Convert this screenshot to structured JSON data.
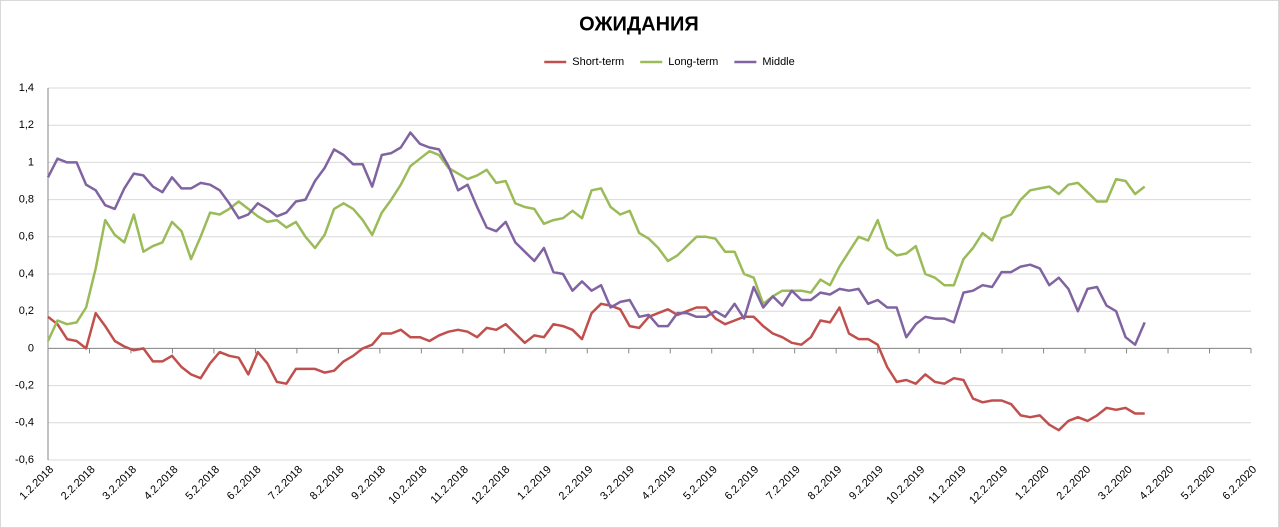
{
  "chart_data": {
    "type": "line",
    "title": "ОЖИДАНИЯ",
    "x": [
      0,
      1,
      2,
      3,
      4,
      5,
      6,
      7,
      8,
      9,
      10,
      11,
      12,
      13,
      14,
      15,
      16,
      17,
      18,
      19,
      20,
      21,
      22,
      23,
      24,
      25,
      26,
      27,
      28,
      29,
      30,
      31,
      32,
      33,
      34,
      35,
      36,
      37,
      38,
      39,
      40,
      41,
      42,
      43,
      44,
      45,
      46,
      47,
      48,
      49,
      50,
      51,
      52,
      53,
      54,
      55,
      56,
      57,
      58,
      59,
      60,
      61,
      62,
      63,
      64,
      65,
      66,
      67,
      68,
      69,
      70,
      71,
      72,
      73,
      74,
      75,
      76,
      77,
      78,
      79,
      80,
      81,
      82,
      83,
      84,
      85,
      86,
      87,
      88,
      89,
      90,
      91,
      92,
      93,
      94,
      95,
      96,
      97,
      98,
      99,
      100,
      101,
      102,
      103,
      104,
      105,
      106,
      107,
      108,
      109,
      110,
      111,
      112,
      113,
      114,
      115
    ],
    "xlim": [
      0,
      126.15
    ],
    "xticks": [
      {
        "value": 0,
        "label": "1.2.2018"
      },
      {
        "value": 4.35,
        "label": "2.2.2018"
      },
      {
        "value": 8.7,
        "label": "3.2.2018"
      },
      {
        "value": 13.05,
        "label": "4.2.2018"
      },
      {
        "value": 17.4,
        "label": "5.2.2018"
      },
      {
        "value": 21.75,
        "label": "6.2.2018"
      },
      {
        "value": 26.1,
        "label": "7.2.2018"
      },
      {
        "value": 30.45,
        "label": "8.2.2018"
      },
      {
        "value": 34.8,
        "label": "9.2.2018"
      },
      {
        "value": 39.15,
        "label": "10.2.2018"
      },
      {
        "value": 43.5,
        "label": "11.2.2018"
      },
      {
        "value": 47.85,
        "label": "12.2.2018"
      },
      {
        "value": 52.2,
        "label": "1.2.2019"
      },
      {
        "value": 56.55,
        "label": "2.2.2019"
      },
      {
        "value": 60.9,
        "label": "3.2.2019"
      },
      {
        "value": 65.25,
        "label": "4.2.2019"
      },
      {
        "value": 69.6,
        "label": "5.2.2019"
      },
      {
        "value": 73.95,
        "label": "6.2.2019"
      },
      {
        "value": 78.3,
        "label": "7.2.2019"
      },
      {
        "value": 82.65,
        "label": "8.2.2019"
      },
      {
        "value": 87,
        "label": "9.2.2019"
      },
      {
        "value": 91.35,
        "label": "10.2.2019"
      },
      {
        "value": 95.7,
        "label": "11.2.2019"
      },
      {
        "value": 100.05,
        "label": "12.2.2019"
      },
      {
        "value": 104.4,
        "label": "1.2.2020"
      },
      {
        "value": 108.75,
        "label": "2.2.2020"
      },
      {
        "value": 113.1,
        "label": "3.2.2020"
      },
      {
        "value": 117.45,
        "label": "4.2.2020"
      },
      {
        "value": 121.8,
        "label": "5.2.2020"
      },
      {
        "value": 126.15,
        "label": "6.2.2020"
      }
    ],
    "ylim": [
      -0.6,
      1.4
    ],
    "yticks": [
      {
        "value": -0.6,
        "label": "-0,6"
      },
      {
        "value": -0.4,
        "label": "-0,4"
      },
      {
        "value": -0.2,
        "label": "-0,2"
      },
      0,
      {
        "value": 0.2,
        "label": "0,2"
      },
      {
        "value": 0.4,
        "label": "0,4"
      },
      {
        "value": 0.6,
        "label": "0,6"
      },
      {
        "value": 0.8,
        "label": "0,8"
      },
      1,
      {
        "value": 1.2,
        "label": "1,2"
      },
      {
        "value": 1.4,
        "label": "1,4"
      }
    ],
    "grid": true,
    "legend": "top",
    "series": [
      {
        "name": "Short-term",
        "color": "#c0504d",
        "values": [
          0.17,
          0.13,
          0.05,
          0.04,
          0.0,
          0.19,
          0.12,
          0.04,
          0.01,
          -0.01,
          0.0,
          -0.07,
          -0.07,
          -0.04,
          -0.1,
          -0.14,
          -0.16,
          -0.08,
          -0.02,
          -0.04,
          -0.05,
          -0.14,
          -0.02,
          -0.08,
          -0.18,
          -0.19,
          -0.11,
          -0.11,
          -0.11,
          -0.13,
          -0.12,
          -0.07,
          -0.04,
          0.0,
          0.02,
          0.08,
          0.08,
          0.1,
          0.06,
          0.06,
          0.04,
          0.07,
          0.09,
          0.1,
          0.09,
          0.06,
          0.11,
          0.1,
          0.13,
          0.08,
          0.03,
          0.07,
          0.06,
          0.13,
          0.12,
          0.1,
          0.05,
          0.19,
          0.24,
          0.23,
          0.21,
          0.12,
          0.11,
          0.17,
          0.19,
          0.21,
          0.18,
          0.2,
          0.22,
          0.22,
          0.16,
          0.13,
          0.15,
          0.17,
          0.17,
          0.12,
          0.08,
          0.06,
          0.03,
          0.02,
          0.06,
          0.15,
          0.14,
          0.22,
          0.08,
          0.05,
          0.05,
          0.02,
          -0.1,
          -0.18,
          -0.17,
          -0.19,
          -0.14,
          -0.18,
          -0.19,
          -0.16,
          -0.17,
          -0.27,
          -0.29,
          -0.28,
          -0.28,
          -0.3,
          -0.36,
          -0.37,
          -0.36,
          -0.41,
          -0.44,
          -0.39,
          -0.37,
          -0.39,
          -0.36,
          -0.32,
          -0.33,
          -0.32,
          -0.35,
          -0.35
        ]
      },
      {
        "name": "Long-term",
        "color": "#9bbb59",
        "values": [
          0.04,
          0.15,
          0.13,
          0.14,
          0.22,
          0.43,
          0.69,
          0.61,
          0.57,
          0.72,
          0.52,
          0.55,
          0.57,
          0.68,
          0.63,
          0.48,
          0.6,
          0.73,
          0.72,
          0.75,
          0.79,
          0.75,
          0.71,
          0.68,
          0.69,
          0.65,
          0.68,
          0.6,
          0.54,
          0.61,
          0.75,
          0.78,
          0.75,
          0.69,
          0.61,
          0.73,
          0.8,
          0.88,
          0.98,
          1.02,
          1.06,
          1.04,
          0.97,
          0.94,
          0.91,
          0.93,
          0.96,
          0.89,
          0.9,
          0.78,
          0.76,
          0.75,
          0.67,
          0.69,
          0.7,
          0.74,
          0.7,
          0.85,
          0.86,
          0.76,
          0.72,
          0.74,
          0.62,
          0.59,
          0.54,
          0.47,
          0.5,
          0.55,
          0.6,
          0.6,
          0.59,
          0.52,
          0.52,
          0.4,
          0.38,
          0.24,
          0.28,
          0.31,
          0.31,
          0.31,
          0.3,
          0.37,
          0.34,
          0.44,
          0.52,
          0.6,
          0.58,
          0.69,
          0.54,
          0.5,
          0.51,
          0.55,
          0.4,
          0.38,
          0.34,
          0.34,
          0.48,
          0.54,
          0.62,
          0.58,
          0.7,
          0.72,
          0.8,
          0.85,
          0.86,
          0.87,
          0.83,
          0.88,
          0.89,
          0.84,
          0.79,
          0.79,
          0.91,
          0.9,
          0.83,
          0.87
        ]
      },
      {
        "name": "Middle",
        "color": "#8064a2",
        "values": [
          0.92,
          1.02,
          1.0,
          1.0,
          0.88,
          0.85,
          0.77,
          0.75,
          0.86,
          0.94,
          0.93,
          0.87,
          0.84,
          0.92,
          0.86,
          0.86,
          0.89,
          0.88,
          0.85,
          0.78,
          0.7,
          0.72,
          0.78,
          0.75,
          0.71,
          0.73,
          0.79,
          0.8,
          0.9,
          0.97,
          1.07,
          1.04,
          0.99,
          0.99,
          0.87,
          1.04,
          1.05,
          1.08,
          1.16,
          1.1,
          1.08,
          1.07,
          0.98,
          0.85,
          0.88,
          0.76,
          0.65,
          0.63,
          0.68,
          0.57,
          0.52,
          0.47,
          0.54,
          0.41,
          0.4,
          0.31,
          0.36,
          0.31,
          0.34,
          0.22,
          0.25,
          0.26,
          0.17,
          0.18,
          0.12,
          0.12,
          0.19,
          0.19,
          0.17,
          0.17,
          0.2,
          0.17,
          0.24,
          0.16,
          0.33,
          0.22,
          0.28,
          0.23,
          0.31,
          0.26,
          0.26,
          0.3,
          0.29,
          0.32,
          0.31,
          0.32,
          0.24,
          0.26,
          0.22,
          0.22,
          0.06,
          0.13,
          0.17,
          0.16,
          0.16,
          0.14,
          0.3,
          0.31,
          0.34,
          0.33,
          0.41,
          0.41,
          0.44,
          0.45,
          0.43,
          0.34,
          0.38,
          0.32,
          0.2,
          0.32,
          0.33,
          0.23,
          0.2,
          0.06,
          0.02,
          0.14
        ]
      }
    ]
  }
}
